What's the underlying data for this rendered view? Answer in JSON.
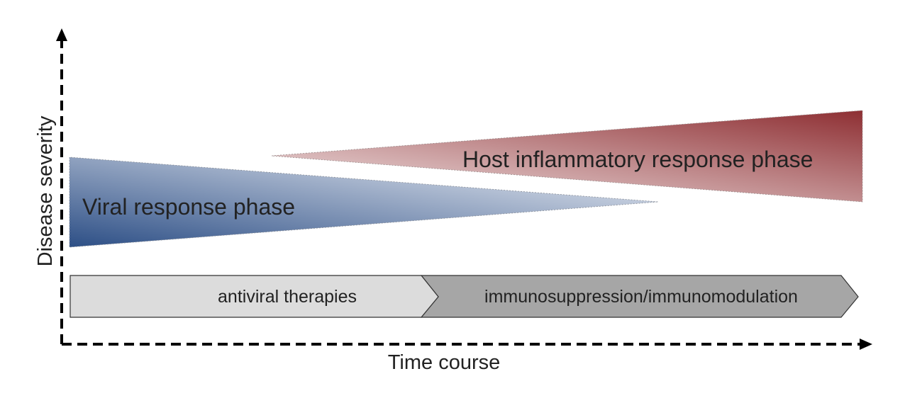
{
  "axes": {
    "y_label": "Disease severity",
    "x_label": "Time course"
  },
  "phases": {
    "viral": {
      "label": "Viral response phase",
      "color_strong": "#2d4f86",
      "color_light": "#f3f5f9"
    },
    "inflammatory": {
      "label": "Host inflammatory response phase",
      "color_strong": "#8e2f33",
      "color_light": "#f5ecec"
    }
  },
  "therapies": {
    "antiviral": {
      "label": "antiviral therapies",
      "color": "#dcdcdc"
    },
    "immuno": {
      "label": "immunosuppression/immunomodulation",
      "color": "#a6a6a6"
    }
  },
  "colors": {
    "axis": "#000000",
    "text": "#222222"
  }
}
